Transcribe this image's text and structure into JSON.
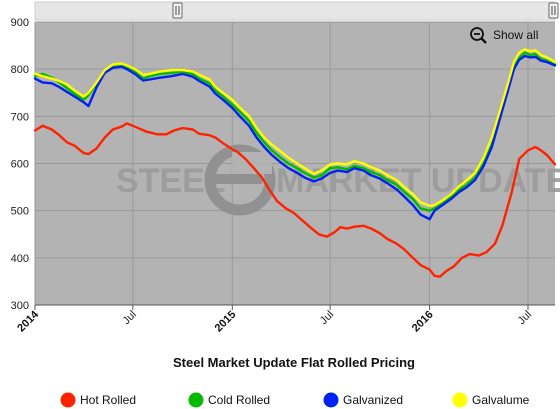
{
  "chart_data": {
    "type": "line",
    "title": "Steel Market Update Flat Rolled Pricing",
    "xlabel": "",
    "ylabel": "",
    "ylim": [
      300,
      900
    ],
    "yticks": [
      300,
      400,
      500,
      600,
      700,
      800,
      900
    ],
    "xlim": [
      "2014-01-01",
      "2016-08-20"
    ],
    "xticks": [
      {
        "date": "2014-01-01",
        "label": "2014",
        "bold": true
      },
      {
        "date": "2014-07-01",
        "label": "Jul",
        "bold": false
      },
      {
        "date": "2015-01-01",
        "label": "2015",
        "bold": true
      },
      {
        "date": "2015-07-01",
        "label": "Jul",
        "bold": false
      },
      {
        "date": "2016-01-01",
        "label": "2016",
        "bold": true
      },
      {
        "date": "2016-07-01",
        "label": "Jul",
        "bold": false
      }
    ],
    "grid": true,
    "legend_position": "bottom",
    "series": [
      {
        "name": "Hot Rolled",
        "color": "#ff2200",
        "points": [
          [
            "2014-01-01",
            670
          ],
          [
            "2014-01-15",
            680
          ],
          [
            "2014-02-01",
            672
          ],
          [
            "2014-02-15",
            660
          ],
          [
            "2014-03-01",
            645
          ],
          [
            "2014-03-15",
            638
          ],
          [
            "2014-04-01",
            622
          ],
          [
            "2014-04-10",
            620
          ],
          [
            "2014-04-25",
            632
          ],
          [
            "2014-05-10",
            655
          ],
          [
            "2014-05-25",
            672
          ],
          [
            "2014-06-10",
            678
          ],
          [
            "2014-06-20",
            685
          ],
          [
            "2014-07-05",
            678
          ],
          [
            "2014-07-25",
            668
          ],
          [
            "2014-08-15",
            662
          ],
          [
            "2014-09-01",
            662
          ],
          [
            "2014-09-15",
            670
          ],
          [
            "2014-10-01",
            675
          ],
          [
            "2014-10-20",
            672
          ],
          [
            "2014-11-01",
            663
          ],
          [
            "2014-11-20",
            660
          ],
          [
            "2014-12-01",
            655
          ],
          [
            "2014-12-15",
            643
          ],
          [
            "2015-01-01",
            630
          ],
          [
            "2015-01-10",
            625
          ],
          [
            "2015-01-25",
            610
          ],
          [
            "2015-02-10",
            590
          ],
          [
            "2015-02-25",
            570
          ],
          [
            "2015-03-10",
            545
          ],
          [
            "2015-03-25",
            520
          ],
          [
            "2015-04-10",
            505
          ],
          [
            "2015-04-25",
            495
          ],
          [
            "2015-05-10",
            480
          ],
          [
            "2015-05-25",
            465
          ],
          [
            "2015-06-10",
            450
          ],
          [
            "2015-06-25",
            445
          ],
          [
            "2015-07-10",
            455
          ],
          [
            "2015-07-20",
            465
          ],
          [
            "2015-08-01",
            462
          ],
          [
            "2015-08-15",
            466
          ],
          [
            "2015-09-01",
            468
          ],
          [
            "2015-09-15",
            462
          ],
          [
            "2015-10-01",
            452
          ],
          [
            "2015-10-15",
            440
          ],
          [
            "2015-11-01",
            430
          ],
          [
            "2015-11-15",
            418
          ],
          [
            "2015-12-01",
            400
          ],
          [
            "2015-12-15",
            385
          ],
          [
            "2016-01-01",
            375
          ],
          [
            "2016-01-10",
            362
          ],
          [
            "2016-01-20",
            360
          ],
          [
            "2016-02-01",
            372
          ],
          [
            "2016-02-15",
            382
          ],
          [
            "2016-03-01",
            400
          ],
          [
            "2016-03-15",
            408
          ],
          [
            "2016-04-01",
            405
          ],
          [
            "2016-04-15",
            412
          ],
          [
            "2016-05-01",
            430
          ],
          [
            "2016-05-15",
            470
          ],
          [
            "2016-06-01",
            540
          ],
          [
            "2016-06-15",
            610
          ],
          [
            "2016-07-01",
            628
          ],
          [
            "2016-07-15",
            635
          ],
          [
            "2016-07-25",
            628
          ],
          [
            "2016-08-05",
            618
          ],
          [
            "2016-08-20",
            598
          ]
        ]
      },
      {
        "name": "Cold Rolled",
        "color": "#00bb00",
        "points": [
          [
            "2014-01-01",
            785
          ],
          [
            "2014-01-15",
            790
          ],
          [
            "2014-02-01",
            782
          ],
          [
            "2014-02-15",
            772
          ],
          [
            "2014-03-01",
            760
          ],
          [
            "2014-03-15",
            748
          ],
          [
            "2014-04-01",
            735
          ],
          [
            "2014-04-10",
            745
          ],
          [
            "2014-04-25",
            770
          ],
          [
            "2014-05-10",
            795
          ],
          [
            "2014-05-25",
            808
          ],
          [
            "2014-06-10",
            810
          ],
          [
            "2014-06-20",
            805
          ],
          [
            "2014-07-05",
            795
          ],
          [
            "2014-07-20",
            780
          ],
          [
            "2014-08-01",
            785
          ],
          [
            "2014-08-20",
            790
          ],
          [
            "2014-09-10",
            792
          ],
          [
            "2014-10-01",
            795
          ],
          [
            "2014-10-20",
            790
          ],
          [
            "2014-11-01",
            780
          ],
          [
            "2014-11-20",
            770
          ],
          [
            "2014-12-01",
            755
          ],
          [
            "2014-12-15",
            742
          ],
          [
            "2015-01-01",
            725
          ],
          [
            "2015-01-15",
            710
          ],
          [
            "2015-02-01",
            690
          ],
          [
            "2015-02-15",
            665
          ],
          [
            "2015-03-01",
            645
          ],
          [
            "2015-03-15",
            628
          ],
          [
            "2015-04-01",
            612
          ],
          [
            "2015-04-15",
            600
          ],
          [
            "2015-05-01",
            590
          ],
          [
            "2015-05-15",
            580
          ],
          [
            "2015-06-01",
            570
          ],
          [
            "2015-06-15",
            575
          ],
          [
            "2015-07-01",
            590
          ],
          [
            "2015-07-15",
            592
          ],
          [
            "2015-08-01",
            588
          ],
          [
            "2015-08-15",
            595
          ],
          [
            "2015-09-01",
            590
          ],
          [
            "2015-09-15",
            582
          ],
          [
            "2015-10-01",
            575
          ],
          [
            "2015-10-15",
            565
          ],
          [
            "2015-11-01",
            555
          ],
          [
            "2015-11-15",
            540
          ],
          [
            "2015-12-01",
            525
          ],
          [
            "2015-12-15",
            505
          ],
          [
            "2016-01-01",
            500
          ],
          [
            "2016-01-10",
            505
          ],
          [
            "2016-01-25",
            515
          ],
          [
            "2016-02-10",
            530
          ],
          [
            "2016-02-25",
            545
          ],
          [
            "2016-03-10",
            555
          ],
          [
            "2016-03-25",
            570
          ],
          [
            "2016-04-10",
            600
          ],
          [
            "2016-04-25",
            640
          ],
          [
            "2016-05-10",
            700
          ],
          [
            "2016-05-25",
            760
          ],
          [
            "2016-06-05",
            805
          ],
          [
            "2016-06-15",
            825
          ],
          [
            "2016-06-25",
            835
          ],
          [
            "2016-07-05",
            830
          ],
          [
            "2016-07-15",
            832
          ],
          [
            "2016-07-25",
            822
          ],
          [
            "2016-08-05",
            818
          ],
          [
            "2016-08-20",
            810
          ]
        ]
      },
      {
        "name": "Galvanized",
        "color": "#0022ee",
        "points": [
          [
            "2014-01-01",
            780
          ],
          [
            "2014-01-15",
            772
          ],
          [
            "2014-02-01",
            770
          ],
          [
            "2014-02-15",
            762
          ],
          [
            "2014-03-01",
            752
          ],
          [
            "2014-03-15",
            742
          ],
          [
            "2014-04-01",
            730
          ],
          [
            "2014-04-10",
            722
          ],
          [
            "2014-04-25",
            762
          ],
          [
            "2014-05-10",
            792
          ],
          [
            "2014-05-25",
            803
          ],
          [
            "2014-06-10",
            805
          ],
          [
            "2014-06-20",
            800
          ],
          [
            "2014-07-05",
            790
          ],
          [
            "2014-07-20",
            776
          ],
          [
            "2014-08-01",
            778
          ],
          [
            "2014-08-20",
            782
          ],
          [
            "2014-09-10",
            785
          ],
          [
            "2014-10-01",
            790
          ],
          [
            "2014-10-20",
            784
          ],
          [
            "2014-11-01",
            775
          ],
          [
            "2014-11-20",
            763
          ],
          [
            "2014-12-01",
            748
          ],
          [
            "2014-12-15",
            735
          ],
          [
            "2015-01-01",
            718
          ],
          [
            "2015-01-15",
            700
          ],
          [
            "2015-02-01",
            680
          ],
          [
            "2015-02-15",
            655
          ],
          [
            "2015-03-01",
            635
          ],
          [
            "2015-03-15",
            618
          ],
          [
            "2015-04-01",
            602
          ],
          [
            "2015-04-15",
            590
          ],
          [
            "2015-05-01",
            580
          ],
          [
            "2015-05-15",
            570
          ],
          [
            "2015-06-01",
            562
          ],
          [
            "2015-06-15",
            568
          ],
          [
            "2015-07-01",
            580
          ],
          [
            "2015-07-15",
            585
          ],
          [
            "2015-08-01",
            582
          ],
          [
            "2015-08-15",
            590
          ],
          [
            "2015-09-01",
            585
          ],
          [
            "2015-09-15",
            575
          ],
          [
            "2015-10-01",
            568
          ],
          [
            "2015-10-15",
            558
          ],
          [
            "2015-11-01",
            545
          ],
          [
            "2015-11-15",
            530
          ],
          [
            "2015-12-01",
            512
          ],
          [
            "2015-12-15",
            492
          ],
          [
            "2016-01-01",
            482
          ],
          [
            "2016-01-10",
            500
          ],
          [
            "2016-01-25",
            512
          ],
          [
            "2016-02-10",
            525
          ],
          [
            "2016-02-25",
            540
          ],
          [
            "2016-03-10",
            550
          ],
          [
            "2016-03-25",
            565
          ],
          [
            "2016-04-10",
            595
          ],
          [
            "2016-04-25",
            635
          ],
          [
            "2016-05-10",
            695
          ],
          [
            "2016-05-25",
            755
          ],
          [
            "2016-06-05",
            800
          ],
          [
            "2016-06-15",
            820
          ],
          [
            "2016-06-25",
            828
          ],
          [
            "2016-07-05",
            825
          ],
          [
            "2016-07-15",
            826
          ],
          [
            "2016-07-25",
            818
          ],
          [
            "2016-08-05",
            815
          ],
          [
            "2016-08-20",
            808
          ]
        ]
      },
      {
        "name": "Galvalume",
        "color": "#ffff00",
        "points": [
          [
            "2014-01-01",
            790
          ],
          [
            "2014-01-15",
            785
          ],
          [
            "2014-02-01",
            780
          ],
          [
            "2014-02-15",
            775
          ],
          [
            "2014-03-01",
            768
          ],
          [
            "2014-03-15",
            755
          ],
          [
            "2014-04-01",
            742
          ],
          [
            "2014-04-10",
            750
          ],
          [
            "2014-04-25",
            772
          ],
          [
            "2014-05-10",
            798
          ],
          [
            "2014-05-25",
            810
          ],
          [
            "2014-06-10",
            812
          ],
          [
            "2014-06-20",
            808
          ],
          [
            "2014-07-05",
            800
          ],
          [
            "2014-07-20",
            788
          ],
          [
            "2014-08-01",
            790
          ],
          [
            "2014-08-20",
            795
          ],
          [
            "2014-09-10",
            798
          ],
          [
            "2014-10-01",
            798
          ],
          [
            "2014-10-20",
            795
          ],
          [
            "2014-11-01",
            788
          ],
          [
            "2014-11-20",
            778
          ],
          [
            "2014-12-01",
            762
          ],
          [
            "2014-12-15",
            750
          ],
          [
            "2015-01-01",
            735
          ],
          [
            "2015-01-15",
            718
          ],
          [
            "2015-02-01",
            700
          ],
          [
            "2015-02-15",
            675
          ],
          [
            "2015-03-01",
            655
          ],
          [
            "2015-03-15",
            640
          ],
          [
            "2015-04-01",
            625
          ],
          [
            "2015-04-15",
            612
          ],
          [
            "2015-05-01",
            600
          ],
          [
            "2015-05-15",
            590
          ],
          [
            "2015-06-01",
            578
          ],
          [
            "2015-06-15",
            585
          ],
          [
            "2015-07-01",
            598
          ],
          [
            "2015-07-15",
            600
          ],
          [
            "2015-08-01",
            598
          ],
          [
            "2015-08-15",
            605
          ],
          [
            "2015-09-01",
            600
          ],
          [
            "2015-09-15",
            592
          ],
          [
            "2015-10-01",
            585
          ],
          [
            "2015-10-15",
            575
          ],
          [
            "2015-11-01",
            565
          ],
          [
            "2015-11-15",
            550
          ],
          [
            "2015-12-01",
            535
          ],
          [
            "2015-12-15",
            518
          ],
          [
            "2016-01-01",
            510
          ],
          [
            "2016-01-10",
            512
          ],
          [
            "2016-01-25",
            522
          ],
          [
            "2016-02-10",
            535
          ],
          [
            "2016-02-25",
            552
          ],
          [
            "2016-03-10",
            565
          ],
          [
            "2016-03-25",
            580
          ],
          [
            "2016-04-10",
            612
          ],
          [
            "2016-04-25",
            655
          ],
          [
            "2016-05-10",
            712
          ],
          [
            "2016-05-25",
            770
          ],
          [
            "2016-06-05",
            815
          ],
          [
            "2016-06-15",
            835
          ],
          [
            "2016-06-25",
            842
          ],
          [
            "2016-07-05",
            838
          ],
          [
            "2016-07-15",
            840
          ],
          [
            "2016-07-25",
            830
          ],
          [
            "2016-08-05",
            825
          ],
          [
            "2016-08-20",
            815
          ]
        ]
      }
    ]
  },
  "watermark": {
    "left": "STEEL",
    "right": "MARKET UPDATE"
  },
  "toolbar": {
    "show_all_label": "Show all",
    "zoom_icon": "zoom-out-icon",
    "scroll_handle_icon": "grip-icon"
  },
  "colors": {
    "plot_background": "#b3b3b3",
    "gridline": "#9a9a9a",
    "scrollbar": "#e6e6e6"
  }
}
